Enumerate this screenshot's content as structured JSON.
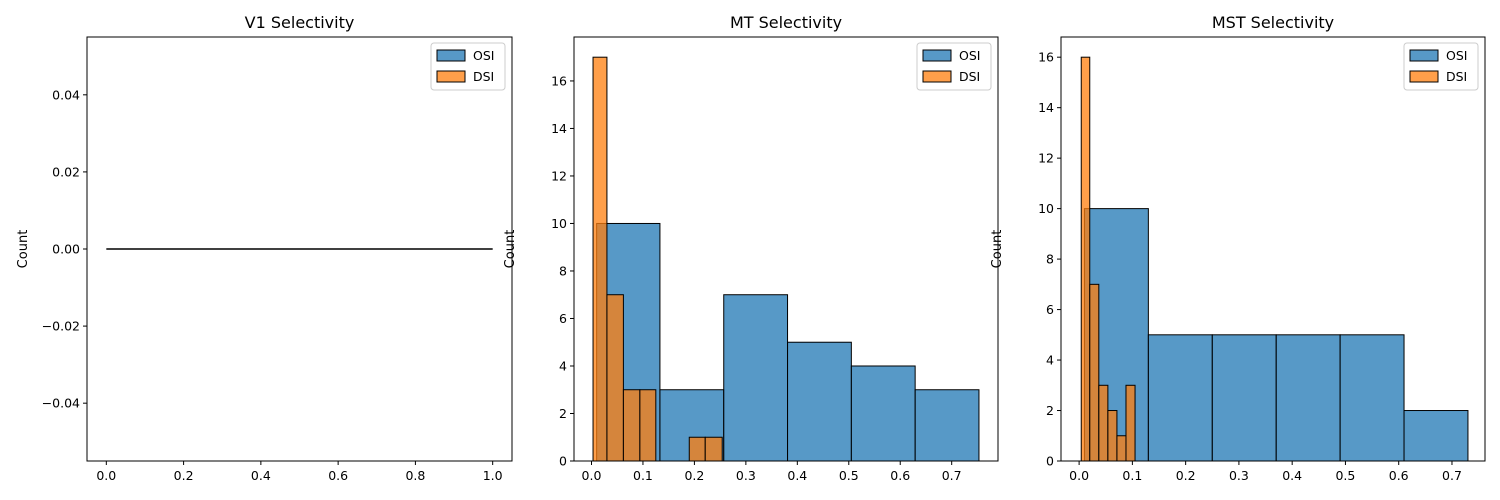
{
  "chart_data": [
    {
      "type": "bar",
      "title": "V1 Selectivity",
      "xlabel": "",
      "ylabel": "Count",
      "xlim": [
        -0.05,
        1.05
      ],
      "ylim": [
        -0.055,
        0.055
      ],
      "xticks": [
        "0.0",
        "0.2",
        "0.4",
        "0.6",
        "0.8",
        "1.0"
      ],
      "yticks": [
        "−0.04",
        "−0.02",
        "0.00",
        "0.02",
        "0.04"
      ],
      "legend": "top-right",
      "grid": false,
      "series": [
        {
          "name": "OSI",
          "color": "#1f77b4",
          "bins": []
        },
        {
          "name": "DSI",
          "color": "#ff7f0e",
          "bins": []
        }
      ],
      "line": {
        "x": [
          0.0,
          1.0
        ],
        "y": [
          0,
          0
        ]
      }
    },
    {
      "type": "bar",
      "title": "MT Selectivity",
      "xlabel": "",
      "ylabel": "Count",
      "xlim": [
        -0.034,
        0.79
      ],
      "ylim": [
        0,
        17.85
      ],
      "xticks": [
        "0.0",
        "0.1",
        "0.2",
        "0.3",
        "0.4",
        "0.5",
        "0.6",
        "0.7"
      ],
      "yticks": [
        "0",
        "2",
        "4",
        "6",
        "8",
        "10",
        "12",
        "14",
        "16"
      ],
      "legend": "top-right",
      "grid": false,
      "series": [
        {
          "name": "OSI",
          "color": "#1f77b4",
          "bins": [
            {
              "x0": 0.01,
              "x1": 0.133,
              "count": 10
            },
            {
              "x0": 0.133,
              "x1": 0.257,
              "count": 3
            },
            {
              "x0": 0.257,
              "x1": 0.381,
              "count": 7
            },
            {
              "x0": 0.381,
              "x1": 0.505,
              "count": 5
            },
            {
              "x0": 0.505,
              "x1": 0.629,
              "count": 4
            },
            {
              "x0": 0.629,
              "x1": 0.753,
              "count": 3
            }
          ]
        },
        {
          "name": "DSI",
          "color": "#ff7f0e",
          "bins": [
            {
              "x0": 0.003,
              "x1": 0.03,
              "count": 17
            },
            {
              "x0": 0.03,
              "x1": 0.062,
              "count": 7
            },
            {
              "x0": 0.062,
              "x1": 0.094,
              "count": 3
            },
            {
              "x0": 0.094,
              "x1": 0.125,
              "count": 3
            },
            {
              "x0": 0.19,
              "x1": 0.221,
              "count": 1
            },
            {
              "x0": 0.221,
              "x1": 0.254,
              "count": 1
            }
          ]
        }
      ]
    },
    {
      "type": "bar",
      "title": "MST Selectivity",
      "xlabel": "",
      "ylabel": "Count",
      "xlim": [
        -0.034,
        0.762
      ],
      "ylim": [
        0,
        16.8
      ],
      "xticks": [
        "0.0",
        "0.1",
        "0.2",
        "0.3",
        "0.4",
        "0.5",
        "0.6",
        "0.7"
      ],
      "yticks": [
        "0",
        "2",
        "4",
        "6",
        "8",
        "10",
        "12",
        "14",
        "16"
      ],
      "legend": "top-right",
      "grid": false,
      "series": [
        {
          "name": "OSI",
          "color": "#1f77b4",
          "bins": [
            {
              "x0": 0.01,
              "x1": 0.13,
              "count": 10
            },
            {
              "x0": 0.13,
              "x1": 0.25,
              "count": 5
            },
            {
              "x0": 0.25,
              "x1": 0.37,
              "count": 5
            },
            {
              "x0": 0.37,
              "x1": 0.49,
              "count": 5
            },
            {
              "x0": 0.49,
              "x1": 0.61,
              "count": 5
            },
            {
              "x0": 0.61,
              "x1": 0.73,
              "count": 2
            }
          ]
        },
        {
          "name": "DSI",
          "color": "#ff7f0e",
          "bins": [
            {
              "x0": 0.004,
              "x1": 0.02,
              "count": 16
            },
            {
              "x0": 0.02,
              "x1": 0.037,
              "count": 7
            },
            {
              "x0": 0.037,
              "x1": 0.054,
              "count": 3
            },
            {
              "x0": 0.054,
              "x1": 0.071,
              "count": 2
            },
            {
              "x0": 0.071,
              "x1": 0.088,
              "count": 1
            },
            {
              "x0": 0.088,
              "x1": 0.105,
              "count": 3
            }
          ]
        }
      ]
    }
  ]
}
